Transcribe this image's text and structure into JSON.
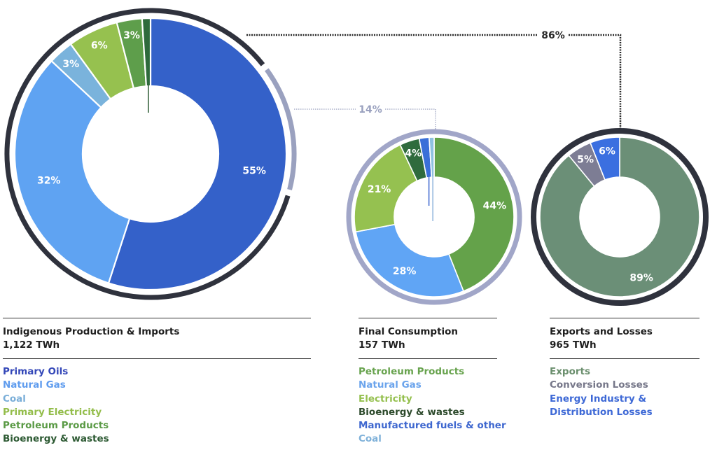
{
  "chart_data": [
    {
      "type": "pie",
      "variant": "donut",
      "title": "Indigenous Production & Imports",
      "total": "1,122 TWh",
      "ring_color": "#2f323d",
      "slices": [
        {
          "label": "Primary Oils",
          "value": 55,
          "display": "55%",
          "color": "#3461c9",
          "text_color": "#3347b8"
        },
        {
          "label": "Natural Gas",
          "value": 32,
          "display": "32%",
          "color": "#5fa3f2",
          "text_color": "#5f9cee"
        },
        {
          "label": "Coal",
          "value": 3,
          "display": "3%",
          "color": "#7ab3dc",
          "text_color": "#7aaed8"
        },
        {
          "label": "Primary Electricity",
          "value": 6,
          "display": "6%",
          "color": "#96c14f",
          "text_color": "#93bd4a"
        },
        {
          "label": "Petroleum Products",
          "value": 3,
          "display": "3%",
          "color": "#5e9e4b",
          "text_color": "#5a9a45"
        },
        {
          "label": "Bioenergy & wastes",
          "value": 1,
          "display": "1%",
          "color": "#2e6a3c",
          "text_color": "#2d5a33"
        }
      ]
    },
    {
      "type": "pie",
      "variant": "donut",
      "title": "Final Consumption",
      "total": "157 TWh",
      "ring_color": "#a1a6c8",
      "slices": [
        {
          "label": "Petroleum Products",
          "value": 44,
          "display": "44%",
          "color": "#64a24a",
          "text_color": "#68a34e"
        },
        {
          "label": "Natural Gas",
          "value": 28,
          "display": "28%",
          "color": "#60a5f5",
          "text_color": "#6ba4ec"
        },
        {
          "label": "Electricity",
          "value": 21,
          "display": "21%",
          "color": "#95c150",
          "text_color": "#95c04f"
        },
        {
          "label": "Bioenergy & wastes",
          "value": 4,
          "display": "4%",
          "color": "#2f6b3d",
          "text_color": "#2d4a2c"
        },
        {
          "label": "Manufactured fuels & other",
          "value": 2,
          "display": "2%",
          "color": "#3a6fd8",
          "text_color": "#3e67cf"
        },
        {
          "label": "Coal",
          "value": 1,
          "display": "1%",
          "color": "#8fc1e0",
          "text_color": "#7fb1d9"
        }
      ]
    },
    {
      "type": "pie",
      "variant": "donut",
      "title": "Exports and Losses",
      "total": "965 TWh",
      "ring_color": "#2f323d",
      "slices": [
        {
          "label": "Exports",
          "value": 89,
          "display": "89%",
          "color": "#6b8f77",
          "text_color": "#6b8f6e"
        },
        {
          "label": "Conversion Losses",
          "value": 5,
          "display": "5%",
          "color": "#7d7d94",
          "text_color": "#767789"
        },
        {
          "label": "Energy Industry & Distribution Losses",
          "display_lines": [
            "Energy Industry &",
            "Distribution Losses"
          ],
          "value": 6,
          "display": "6%",
          "color": "#3b6fe0",
          "text_color": "#3e69d6"
        }
      ]
    }
  ],
  "flows": [
    {
      "label": "86%",
      "from": "Indigenous Production & Imports",
      "to": "Exports and Losses",
      "color": "#2a2a2a"
    },
    {
      "label": "14%",
      "from": "Indigenous Production & Imports",
      "to": "Final Consumption",
      "color": "#9aa1bf"
    }
  ]
}
